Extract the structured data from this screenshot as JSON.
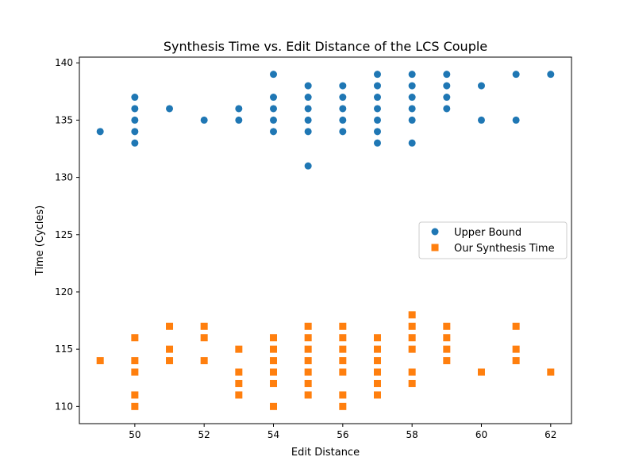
{
  "chart_data": {
    "type": "scatter",
    "title": "Synthesis Time vs. Edit Distance of the LCS Couple",
    "xlabel": "Edit Distance",
    "ylabel": "Time (Cycles)",
    "xlim": [
      48.4,
      62.6
    ],
    "ylim": [
      108.5,
      140.5
    ],
    "xticks": [
      50,
      52,
      54,
      56,
      58,
      60,
      62
    ],
    "yticks": [
      110,
      115,
      120,
      125,
      130,
      135,
      140
    ],
    "legend_position": "center-right",
    "grid": false,
    "series": [
      {
        "name": "Upper Bound",
        "marker": "circle",
        "color": "#1f77b4",
        "points": [
          [
            49,
            134
          ],
          [
            50,
            137
          ],
          [
            50,
            136
          ],
          [
            50,
            135
          ],
          [
            50,
            134
          ],
          [
            50,
            133
          ],
          [
            51,
            136
          ],
          [
            52,
            135
          ],
          [
            53,
            136
          ],
          [
            53,
            135
          ],
          [
            54,
            139
          ],
          [
            54,
            137
          ],
          [
            54,
            136
          ],
          [
            54,
            135
          ],
          [
            54,
            134
          ],
          [
            55,
            138
          ],
          [
            55,
            137
          ],
          [
            55,
            136
          ],
          [
            55,
            135
          ],
          [
            55,
            134
          ],
          [
            55,
            131
          ],
          [
            56,
            138
          ],
          [
            56,
            137
          ],
          [
            56,
            136
          ],
          [
            56,
            135
          ],
          [
            56,
            134
          ],
          [
            57,
            139
          ],
          [
            57,
            138
          ],
          [
            57,
            137
          ],
          [
            57,
            136
          ],
          [
            57,
            135
          ],
          [
            57,
            134
          ],
          [
            57,
            133
          ],
          [
            58,
            139
          ],
          [
            58,
            138
          ],
          [
            58,
            137
          ],
          [
            58,
            136
          ],
          [
            58,
            135
          ],
          [
            58,
            133
          ],
          [
            59,
            139
          ],
          [
            59,
            138
          ],
          [
            59,
            137
          ],
          [
            59,
            136
          ],
          [
            60,
            138
          ],
          [
            60,
            135
          ],
          [
            61,
            139
          ],
          [
            61,
            135
          ],
          [
            62,
            139
          ]
        ]
      },
      {
        "name": "Our Synthesis Time",
        "marker": "square",
        "color": "#ff7f0e",
        "points": [
          [
            49,
            114
          ],
          [
            50,
            116
          ],
          [
            50,
            114
          ],
          [
            50,
            113
          ],
          [
            50,
            111
          ],
          [
            50,
            110
          ],
          [
            51,
            117
          ],
          [
            51,
            115
          ],
          [
            51,
            114
          ],
          [
            52,
            117
          ],
          [
            52,
            116
          ],
          [
            52,
            114
          ],
          [
            53,
            115
          ],
          [
            53,
            113
          ],
          [
            53,
            112
          ],
          [
            53,
            111
          ],
          [
            54,
            116
          ],
          [
            54,
            115
          ],
          [
            54,
            114
          ],
          [
            54,
            113
          ],
          [
            54,
            112
          ],
          [
            54,
            110
          ],
          [
            55,
            117
          ],
          [
            55,
            116
          ],
          [
            55,
            115
          ],
          [
            55,
            114
          ],
          [
            55,
            113
          ],
          [
            55,
            112
          ],
          [
            55,
            111
          ],
          [
            56,
            117
          ],
          [
            56,
            116
          ],
          [
            56,
            115
          ],
          [
            56,
            114
          ],
          [
            56,
            113
          ],
          [
            56,
            111
          ],
          [
            56,
            110
          ],
          [
            57,
            116
          ],
          [
            57,
            115
          ],
          [
            57,
            114
          ],
          [
            57,
            113
          ],
          [
            57,
            112
          ],
          [
            57,
            111
          ],
          [
            58,
            118
          ],
          [
            58,
            117
          ],
          [
            58,
            116
          ],
          [
            58,
            115
          ],
          [
            58,
            113
          ],
          [
            58,
            112
          ],
          [
            59,
            117
          ],
          [
            59,
            116
          ],
          [
            59,
            115
          ],
          [
            59,
            114
          ],
          [
            60,
            113
          ],
          [
            61,
            117
          ],
          [
            61,
            115
          ],
          [
            61,
            114
          ],
          [
            62,
            113
          ]
        ]
      }
    ]
  }
}
